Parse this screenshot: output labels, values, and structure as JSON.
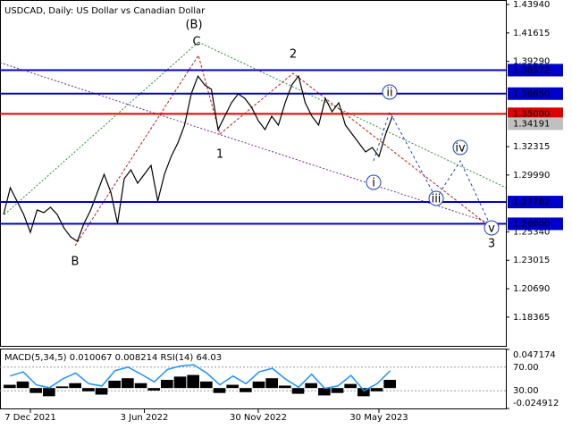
{
  "chart_data": [
    {
      "type": "line",
      "title": "USDCAD, Daily:  US Dollar vs Canadian Dollar",
      "color": "#000000",
      "categories": [
        null,
        null,
        null,
        null,
        "7 Dec 2021",
        null,
        null,
        null,
        null,
        null,
        null,
        null,
        null,
        null,
        null,
        null,
        null,
        null,
        null,
        null,
        null,
        "3 Jun 2022",
        null,
        null,
        null,
        null,
        null,
        null,
        null,
        null,
        null,
        null,
        null,
        null,
        null,
        null,
        null,
        null,
        "30 Nov 2022",
        null,
        null,
        null,
        null,
        null,
        null,
        null,
        null,
        null,
        null,
        null,
        null,
        null,
        null,
        null,
        null,
        null,
        "30 May 2023",
        null,
        null
      ],
      "values": [
        1.2676,
        1.2895,
        1.2786,
        1.2676,
        1.253,
        1.2713,
        1.2691,
        1.2735,
        1.2676,
        1.2567,
        1.2493,
        1.2457,
        1.2603,
        1.2713,
        1.2859,
        1.3005,
        1.2859,
        1.2603,
        1.2969,
        1.3042,
        1.2932,
        1.3005,
        1.3078,
        1.2786,
        1.3005,
        1.3151,
        1.3261,
        1.3407,
        1.3663,
        1.3809,
        1.3736,
        1.37,
        1.3371,
        1.348,
        1.359,
        1.3663,
        1.3626,
        1.3553,
        1.3444,
        1.3371,
        1.348,
        1.3407,
        1.359,
        1.3736,
        1.3809,
        1.359,
        1.348,
        1.3407,
        1.3626,
        1.3517,
        1.359,
        1.3407,
        1.3334,
        1.3261,
        1.3188,
        1.3224,
        1.3151,
        1.3334,
        1.348
      ],
      "ylim": [
        1.1594,
        1.4431
      ],
      "yticks": [
        {
          "value": 1.4394,
          "label": "1.43940"
        },
        1.41615,
        {
          "value": 1.3929,
          "label": "1.39290"
        },
        1.32315,
        {
          "value": 1.2999,
          "label": "1.29990"
        },
        {
          "value": 1.2534,
          "label": "1.25340"
        },
        1.23015,
        {
          "value": 1.2069,
          "label": "1.20690"
        },
        1.18365
      ],
      "levels": [
        {
          "value": 1.38572,
          "label": "1.38572",
          "color": "#0000cc"
        },
        {
          "value": 1.3665,
          "label": "1.36650",
          "color": "#0000cc"
        },
        {
          "value": 1.35,
          "label": "1.35000",
          "color": "#dd0000"
        },
        {
          "value": 1.34191,
          "label": "1.34191",
          "color": "#c0c0c0"
        },
        {
          "value": 1.27782,
          "label": "1.27782",
          "color": "#0000cc"
        },
        {
          "value": 1.26,
          "label": "1.26000",
          "color": "#0000cc"
        }
      ],
      "annotations": [
        {
          "text": "(B)",
          "color": "#2e8b2e",
          "circled": false
        },
        {
          "text": "C",
          "color": "#b22222",
          "circled": false
        },
        {
          "text": "2",
          "color": "#b22222",
          "circled": false
        },
        {
          "text": "1",
          "color": "#b22222",
          "circled": false
        },
        {
          "text": "B",
          "color": "#b22222",
          "circled": false
        },
        {
          "text": "3",
          "color": "#b22222",
          "circled": false
        },
        {
          "text": "ii",
          "color": "#1f3fbf",
          "circled": true
        },
        {
          "text": "i",
          "color": "#1f3fbf",
          "circled": true
        },
        {
          "text": "iii",
          "color": "#1f3fbf",
          "circled": true
        },
        {
          "text": "iv",
          "color": "#1f3fbf",
          "circled": true
        },
        {
          "text": "v",
          "color": "#1f3fbf",
          "circled": true
        }
      ]
    },
    {
      "type": "macd",
      "title": "MACD(5,34,5) 0.010067 0.008214 RSI(14) 64.03",
      "color": "#000000",
      "rsi_color": "#1e90ff",
      "values": [
        0.004,
        0.008,
        -0.006,
        -0.01,
        0.002,
        0.006,
        -0.004,
        -0.008,
        0.009,
        0.012,
        0.006,
        -0.003,
        0.01,
        0.014,
        0.016,
        0.008,
        -0.006,
        0.004,
        -0.005,
        0.008,
        0.012,
        0.003,
        -0.007,
        0.006,
        -0.009,
        -0.006,
        0.005,
        -0.01,
        -0.004,
        0.01
      ],
      "rsi": [
        55,
        62,
        40,
        35,
        50,
        60,
        42,
        38,
        64,
        70,
        58,
        45,
        66,
        72,
        74,
        60,
        40,
        55,
        42,
        62,
        68,
        50,
        36,
        58,
        34,
        38,
        56,
        30,
        42,
        64
      ],
      "ylim": [
        -0.024912,
        0.047174
      ],
      "yticks": [
        0.047174,
        -0.024912
      ],
      "y2lim": [
        0,
        100
      ],
      "y2ticks": [
        {
          "value": 70,
          "label": "70.00"
        },
        {
          "value": 30,
          "label": "30.00"
        }
      ]
    }
  ]
}
